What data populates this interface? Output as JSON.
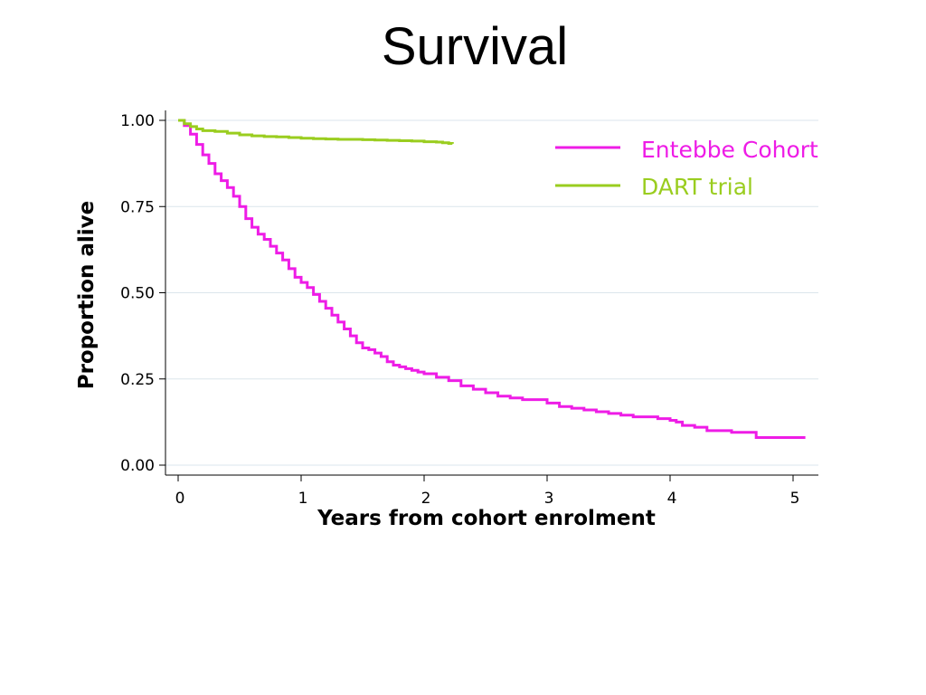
{
  "slide": {
    "title": "Survival"
  },
  "chart_data": {
    "type": "line",
    "title": "Survival",
    "xlabel": "Years from cohort enrolment",
    "ylabel": "Proportion alive",
    "xlim": [
      0,
      5.2
    ],
    "ylim": [
      0,
      1
    ],
    "x_ticks": [
      0,
      1,
      2,
      3,
      4,
      5
    ],
    "x_tick_labels": [
      "0",
      "1",
      "2",
      "3",
      "4",
      "5"
    ],
    "y_ticks": [
      0,
      0.25,
      0.5,
      0.75,
      1
    ],
    "y_tick_labels": [
      "0.00",
      "0.25",
      "0.50",
      "0.75",
      "1.00"
    ],
    "grid": "horizontal",
    "step": true,
    "legend_position": "top-right",
    "series": [
      {
        "name": "Entebbe Cohort",
        "color": "#ee1ce6",
        "x": [
          0,
          0.05,
          0.1,
          0.15,
          0.2,
          0.25,
          0.3,
          0.35,
          0.4,
          0.45,
          0.5,
          0.55,
          0.6,
          0.65,
          0.7,
          0.75,
          0.8,
          0.85,
          0.9,
          0.95,
          1.0,
          1.05,
          1.1,
          1.15,
          1.2,
          1.25,
          1.3,
          1.35,
          1.4,
          1.45,
          1.5,
          1.55,
          1.6,
          1.65,
          1.7,
          1.75,
          1.8,
          1.85,
          1.9,
          1.95,
          2.0,
          2.1,
          2.2,
          2.3,
          2.4,
          2.5,
          2.6,
          2.7,
          2.8,
          3.0,
          3.1,
          3.2,
          3.3,
          3.4,
          3.5,
          3.6,
          3.7,
          3.8,
          3.9,
          4.0,
          4.05,
          4.1,
          4.2,
          4.3,
          4.4,
          4.5,
          4.6,
          4.7,
          4.8,
          5.0,
          5.1
        ],
        "y": [
          1.0,
          0.985,
          0.96,
          0.93,
          0.9,
          0.875,
          0.845,
          0.825,
          0.805,
          0.78,
          0.75,
          0.715,
          0.69,
          0.67,
          0.655,
          0.635,
          0.615,
          0.595,
          0.57,
          0.545,
          0.53,
          0.515,
          0.495,
          0.475,
          0.455,
          0.435,
          0.415,
          0.395,
          0.375,
          0.355,
          0.34,
          0.335,
          0.325,
          0.315,
          0.3,
          0.29,
          0.285,
          0.28,
          0.275,
          0.27,
          0.265,
          0.255,
          0.245,
          0.23,
          0.22,
          0.21,
          0.2,
          0.195,
          0.19,
          0.18,
          0.17,
          0.165,
          0.16,
          0.155,
          0.15,
          0.145,
          0.14,
          0.14,
          0.135,
          0.13,
          0.125,
          0.115,
          0.11,
          0.1,
          0.1,
          0.095,
          0.095,
          0.08,
          0.08,
          0.08,
          0.08
        ]
      },
      {
        "name": "DART trial",
        "color": "#9acd1f",
        "x": [
          0,
          0.05,
          0.1,
          0.15,
          0.2,
          0.3,
          0.4,
          0.5,
          0.6,
          0.7,
          0.8,
          0.9,
          1.0,
          1.1,
          1.2,
          1.3,
          1.4,
          1.5,
          1.6,
          1.7,
          1.8,
          1.9,
          2.0,
          2.1,
          2.15,
          2.2,
          2.23
        ],
        "y": [
          1.0,
          0.99,
          0.982,
          0.975,
          0.97,
          0.968,
          0.963,
          0.958,
          0.955,
          0.953,
          0.952,
          0.95,
          0.948,
          0.947,
          0.946,
          0.945,
          0.945,
          0.944,
          0.943,
          0.942,
          0.941,
          0.94,
          0.938,
          0.937,
          0.935,
          0.933,
          0.932
        ]
      }
    ]
  }
}
